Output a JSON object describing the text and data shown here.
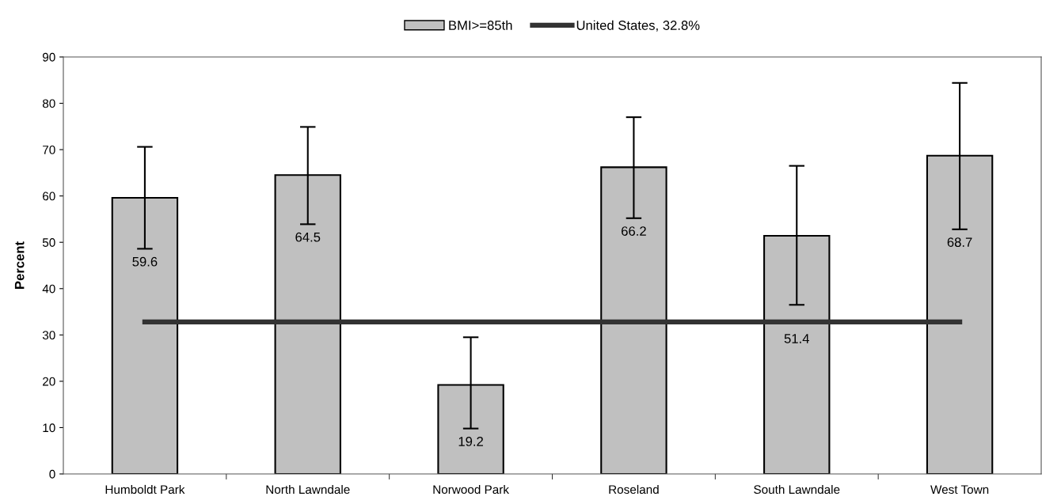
{
  "chart_data": {
    "type": "bar",
    "ylabel": "Percent",
    "categories": [
      "Humboldt Park",
      "North Lawndale",
      "Norwood Park",
      "Roseland",
      "South Lawndale",
      "West Town"
    ],
    "series": [
      {
        "name": "BMI>=85th",
        "color": "#c0c0c0",
        "values": [
          59.6,
          64.5,
          19.2,
          66.2,
          51.4,
          68.7
        ],
        "value_labels": [
          "59.6",
          "64.5",
          "19.2",
          "66.2",
          "51.4",
          "68.7"
        ],
        "errors": [
          [
            48.6,
            70.6
          ],
          [
            53.9,
            74.9
          ],
          [
            9.8,
            29.5
          ],
          [
            55.2,
            77.0
          ],
          [
            36.5,
            66.5
          ],
          [
            52.8,
            84.4
          ]
        ]
      },
      {
        "name": "United States, 32.8%",
        "type": "line",
        "color": "#333333",
        "values": [
          32.8,
          32.8,
          32.8,
          32.8,
          32.8,
          32.8
        ]
      }
    ],
    "ylim": [
      0,
      90
    ],
    "yticks": [
      0,
      10,
      20,
      30,
      40,
      50,
      60,
      70,
      80,
      90
    ],
    "grid": false,
    "legend": "top",
    "marker": "none",
    "line_style": "solid"
  }
}
